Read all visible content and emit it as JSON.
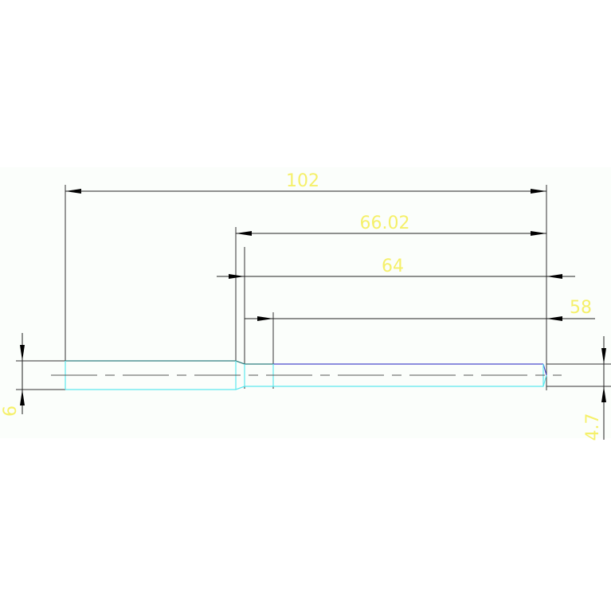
{
  "drawing": {
    "dimensions": [
      {
        "id": "overall-length",
        "label": "102"
      },
      {
        "id": "step-length",
        "label": "66.02"
      },
      {
        "id": "length-64",
        "label": "64"
      },
      {
        "id": "length-58",
        "label": "58"
      },
      {
        "id": "diameter-large",
        "label": "6"
      },
      {
        "id": "diameter-small",
        "label": "4.7"
      }
    ],
    "colors": {
      "dimension_text": "#f5f06a",
      "outline": "#5ee8ee",
      "edge": "#4a4acc",
      "dimension_line": "#222222",
      "background": "#fbfefb"
    }
  }
}
